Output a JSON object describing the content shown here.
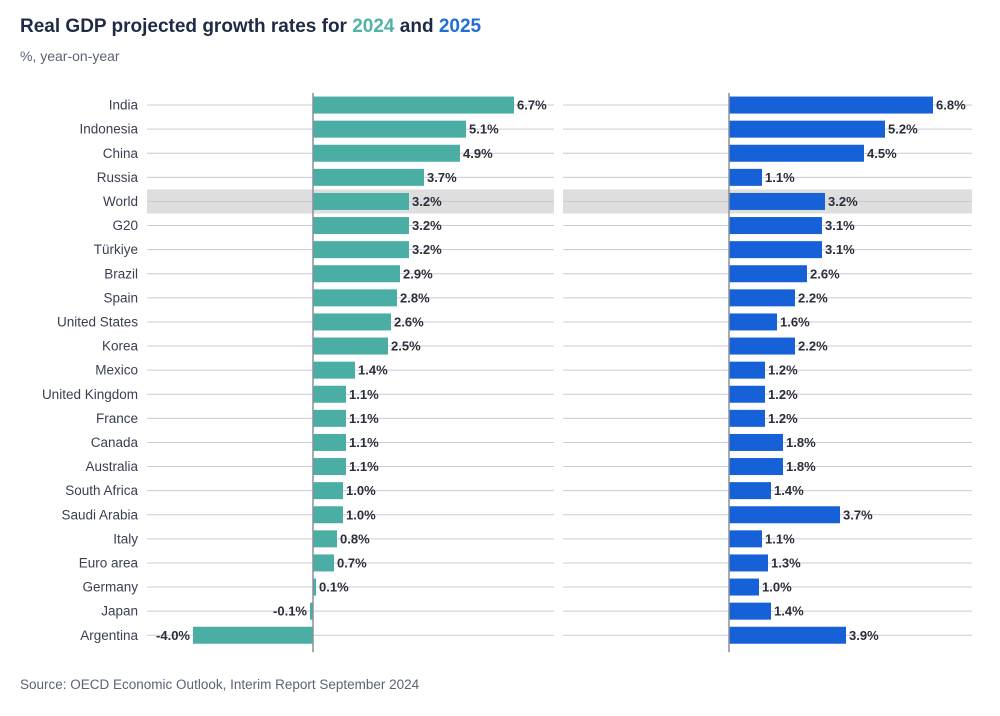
{
  "header": {
    "title_prefix": "Real GDP projected growth rates for ",
    "year1": "2024",
    "title_and": " and ",
    "year2": "2025",
    "subtitle": "%, year-on-year"
  },
  "footer": {
    "source": "Source: OECD Economic Outlook, Interim Report September 2024"
  },
  "colors": {
    "series_2024": "#4aaea5",
    "series_2025": "#1660d8",
    "highlight": "#dedede",
    "gridline": "#c9ccd6",
    "axis": "#8a8f9c"
  },
  "chart_data": {
    "type": "bar",
    "orientation": "horizontal",
    "categories": [
      "India",
      "Indonesia",
      "China",
      "Russia",
      "World",
      "G20",
      "Türkiye",
      "Brazil",
      "Spain",
      "United States",
      "Korea",
      "Mexico",
      "United Kingdom",
      "France",
      "Canada",
      "Australia",
      "South Africa",
      "Saudi Arabia",
      "Italy",
      "Euro area",
      "Germany",
      "Japan",
      "Argentina"
    ],
    "highlighted_category": "World",
    "series": [
      {
        "name": "2024",
        "values": [
          6.7,
          5.1,
          4.9,
          3.7,
          3.2,
          3.2,
          3.2,
          2.9,
          2.8,
          2.6,
          2.5,
          1.4,
          1.1,
          1.1,
          1.1,
          1.1,
          1.0,
          1.0,
          0.8,
          0.7,
          0.1,
          -0.1,
          -4.0
        ],
        "labels": [
          "6.7%",
          "5.1%",
          "4.9%",
          "3.7%",
          "3.2%",
          "3.2%",
          "3.2%",
          "2.9%",
          "2.8%",
          "2.6%",
          "2.5%",
          "1.4%",
          "1.1%",
          "1.1%",
          "1.1%",
          "1.1%",
          "1.0%",
          "1.0%",
          "0.8%",
          "0.7%",
          "0.1%",
          "-0.1%",
          "-4.0%"
        ]
      },
      {
        "name": "2025",
        "values": [
          6.8,
          5.2,
          4.5,
          1.1,
          3.2,
          3.1,
          3.1,
          2.6,
          2.2,
          1.6,
          2.2,
          1.2,
          1.2,
          1.2,
          1.8,
          1.8,
          1.4,
          3.7,
          1.1,
          1.3,
          1.0,
          1.4,
          3.9
        ],
        "labels": [
          "6.8%",
          "5.2%",
          "4.5%",
          "1.1%",
          "3.2%",
          "3.1%",
          "3.1%",
          "2.6%",
          "2.2%",
          "1.6%",
          "2.2%",
          "1.2%",
          "1.2%",
          "1.2%",
          "1.8%",
          "1.8%",
          "1.4%",
          "3.7%",
          "1.1%",
          "1.3%",
          "1.0%",
          "1.4%",
          "3.9%"
        ]
      }
    ],
    "grid": true
  }
}
